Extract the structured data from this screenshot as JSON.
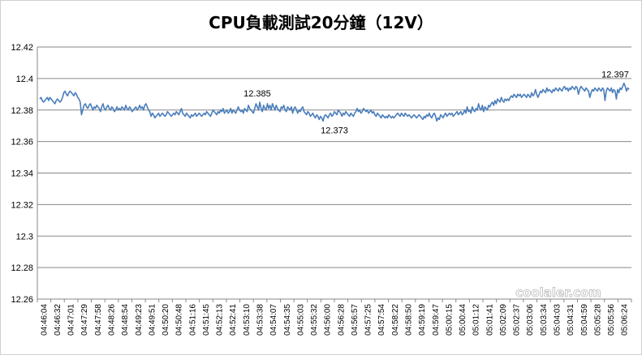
{
  "chart_data": {
    "type": "line",
    "title": "CPU負載測試20分鐘（12V）",
    "xlabel": "",
    "ylabel": "",
    "ylim": [
      12.26,
      12.42
    ],
    "yticks": [
      "12.42",
      "12.4",
      "12.38",
      "12.36",
      "12.34",
      "12.32",
      "12.3",
      "12.28",
      "12.26"
    ],
    "grid": "horizontal",
    "legend": "none",
    "line_color": "#4a7ebb",
    "x_start": "04:46:04",
    "x_end": "05:06:24",
    "x_tick_labels": [
      "04:46:04",
      "04:46:32",
      "04:47:01",
      "04:47:29",
      "04:47:58",
      "04:48:26",
      "04:48:54",
      "04:49:23",
      "04:49:51",
      "04:50:20",
      "04:50:48",
      "04:51:16",
      "04:51:45",
      "04:52:13",
      "04:52:41",
      "04:53:10",
      "04:53:38",
      "04:54:07",
      "04:54:35",
      "04:55:03",
      "04:55:32",
      "04:56:00",
      "04:56:28",
      "04:56:57",
      "04:57:25",
      "04:57:54",
      "04:58:22",
      "04:58:50",
      "04:59:19",
      "04:59:47",
      "05:00:15",
      "05:00:44",
      "05:01:12",
      "05:01:41",
      "05:02:09",
      "05:02:37",
      "05:03:06",
      "05:03:34",
      "05:04:03",
      "05:04:31",
      "05:04:59",
      "05:05:28",
      "05:05:56",
      "05:06:24"
    ],
    "series": [
      {
        "values": [
          12.387,
          12.388,
          12.386,
          12.385,
          12.386,
          12.387,
          12.388,
          12.386,
          12.388,
          12.387,
          12.386,
          12.385,
          12.384,
          12.386,
          12.387,
          12.386,
          12.385,
          12.386,
          12.388,
          12.391,
          12.392,
          12.39,
          12.389,
          12.391,
          12.392,
          12.391,
          12.39,
          12.389,
          12.391,
          12.39,
          12.388,
          12.387,
          12.385,
          12.377,
          12.38,
          12.383,
          12.384,
          12.382,
          12.381,
          12.383,
          12.384,
          12.382,
          12.38,
          12.382,
          12.381,
          12.383,
          12.382,
          12.381,
          12.379,
          12.382,
          12.384,
          12.381,
          12.38,
          12.382,
          12.383,
          12.381,
          12.38,
          12.382,
          12.381,
          12.379,
          12.38,
          12.382,
          12.38,
          12.381,
          12.38,
          12.382,
          12.381,
          12.38,
          12.383,
          12.381,
          12.38,
          12.382,
          12.381,
          12.379,
          12.38,
          12.381,
          12.382,
          12.38,
          12.381,
          12.383,
          12.381,
          12.382,
          12.38,
          12.383,
          12.384,
          12.382,
          12.38,
          12.379,
          12.376,
          12.378,
          12.377,
          12.375,
          12.376,
          12.377,
          12.378,
          12.376,
          12.377,
          12.378,
          12.377,
          12.376,
          12.377,
          12.379,
          12.378,
          12.377,
          12.376,
          12.377,
          12.378,
          12.377,
          12.379,
          12.378,
          12.377,
          12.379,
          12.381,
          12.378,
          12.377,
          12.376,
          12.378,
          12.377,
          12.376,
          12.375,
          12.377,
          12.376,
          12.377,
          12.378,
          12.376,
          12.377,
          12.378,
          12.377,
          12.376,
          12.377,
          12.378,
          12.377,
          12.379,
          12.378,
          12.377,
          12.376,
          12.378,
          12.38,
          12.379,
          12.378,
          12.377,
          12.379,
          12.378,
          12.38,
          12.379,
          12.381,
          12.378,
          12.379,
          12.38,
          12.378,
          12.379,
          12.381,
          12.378,
          12.38,
          12.379,
          12.378,
          12.38,
          12.382,
          12.38,
          12.379,
          12.38,
          12.378,
          12.381,
          12.38,
          12.379,
          12.383,
          12.381,
          12.38,
          12.379,
          12.378,
          12.381,
          12.384,
          12.382,
          12.38,
          12.385,
          12.381,
          12.379,
          12.383,
          12.381,
          12.38,
          12.384,
          12.381,
          12.383,
          12.38,
          12.384,
          12.382,
          12.38,
          12.383,
          12.381,
          12.38,
          12.379,
          12.382,
          12.381,
          12.383,
          12.38,
          12.379,
          12.382,
          12.381,
          12.38,
          12.382,
          12.378,
          12.381,
          12.382,
          12.38,
          12.378,
          12.38,
          12.379,
          12.381,
          12.382,
          12.379,
          12.378,
          12.377,
          12.379,
          12.378,
          12.376,
          12.377,
          12.378,
          12.376,
          12.375,
          12.377,
          12.376,
          12.374,
          12.376,
          12.375,
          12.373,
          12.376,
          12.377,
          12.376,
          12.375,
          12.377,
          12.378,
          12.376,
          12.377,
          12.379,
          12.378,
          12.377,
          12.38,
          12.379,
          12.378,
          12.376,
          12.378,
          12.377,
          12.379,
          12.378,
          12.377,
          12.376,
          12.378,
          12.377,
          12.376,
          12.378,
          12.379,
          12.381,
          12.379,
          12.38,
          12.378,
          12.379,
          12.381,
          12.38,
          12.379,
          12.38,
          12.378,
          12.379,
          12.38,
          12.378,
          12.379,
          12.377,
          12.376,
          12.378,
          12.377,
          12.376,
          12.375,
          12.377,
          12.376,
          12.375,
          12.376,
          12.375,
          12.377,
          12.376,
          12.375,
          12.376,
          12.375,
          12.376,
          12.377,
          12.378,
          12.377,
          12.376,
          12.378,
          12.377,
          12.376,
          12.378,
          12.377,
          12.376,
          12.377,
          12.376,
          12.375,
          12.376,
          12.377,
          12.376,
          12.375,
          12.376,
          12.377,
          12.376,
          12.375,
          12.374,
          12.376,
          12.375,
          12.377,
          12.376,
          12.378,
          12.376,
          12.375,
          12.377,
          12.378,
          12.376,
          12.373,
          12.375,
          12.374,
          12.377,
          12.376,
          12.375,
          12.377,
          12.378,
          12.376,
          12.377,
          12.378,
          12.377,
          12.378,
          12.376,
          12.377,
          12.378,
          12.379,
          12.377,
          12.378,
          12.379,
          12.377,
          12.378,
          12.38,
          12.378,
          12.382,
          12.379,
          12.38,
          12.378,
          12.382,
          12.38,
          12.379,
          12.381,
          12.38,
          12.384,
          12.381,
          12.38,
          12.383,
          12.379,
          12.382,
          12.381,
          12.38,
          12.383,
          12.382,
          12.384,
          12.385,
          12.383,
          12.386,
          12.384,
          12.387,
          12.386,
          12.385,
          12.388,
          12.386,
          12.385,
          12.387,
          12.386,
          12.387,
          12.386,
          12.388,
          12.389,
          12.388,
          12.39,
          12.389,
          12.388,
          12.39,
          12.389,
          12.39,
          12.388,
          12.389,
          12.39,
          12.389,
          12.388,
          12.39,
          12.389,
          12.388,
          12.391,
          12.389,
          12.39,
          12.393,
          12.39,
          12.388,
          12.39,
          12.392,
          12.391,
          12.393,
          12.392,
          12.391,
          12.394,
          12.392,
          12.393,
          12.392,
          12.391,
          12.393,
          12.392,
          12.394,
          12.393,
          12.392,
          12.394,
          12.393,
          12.392,
          12.394,
          12.395,
          12.393,
          12.394,
          12.392,
          12.394,
          12.393,
          12.395,
          12.394,
          12.393,
          12.395,
          12.394,
          12.39,
          12.393,
          12.395,
          12.394,
          12.393,
          12.392,
          12.394,
          12.393,
          12.392,
          12.388,
          12.391,
          12.393,
          12.392,
          12.394,
          12.393,
          12.392,
          12.394,
          12.393,
          12.392,
          12.394,
          12.393,
          12.386,
          12.392,
          12.394,
          12.393,
          12.392,
          12.394,
          12.391,
          12.393,
          12.392,
          12.387,
          12.393,
          12.391,
          12.394,
          12.393,
          12.395,
          12.397,
          12.395,
          12.392,
          12.394,
          12.393
        ]
      }
    ],
    "annotations": [
      {
        "text": "12.385",
        "index": 172,
        "value": 12.385,
        "pos": "above"
      },
      {
        "text": "12.373",
        "index": 233,
        "value": 12.373,
        "pos": "below"
      },
      {
        "text": "12.397",
        "index": 497,
        "value": 12.397,
        "pos": "above"
      }
    ]
  },
  "watermark": "coolaler.com"
}
